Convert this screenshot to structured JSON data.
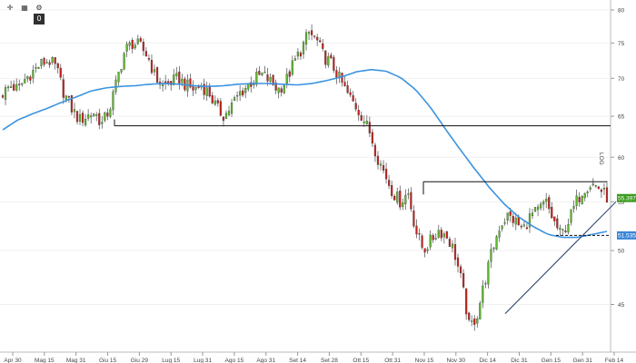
{
  "toolbar": {
    "buttons": [
      {
        "name": "crosshair-icon",
        "glyph": "✛"
      },
      {
        "name": "grid-icon",
        "glyph": "▦"
      },
      {
        "name": "settings-icon",
        "glyph": "⚙"
      },
      {
        "name": "zero-button",
        "glyph": "0"
      }
    ]
  },
  "side_label": "LOG",
  "chart_data": {
    "type": "candlestick",
    "scale": "log",
    "ylim": [
      41,
      81
    ],
    "y_ticks": [
      45,
      50,
      55,
      60,
      65,
      70,
      75,
      80
    ],
    "x_ticks": [
      "Apr 30",
      "Mag 15",
      "Mag 31",
      "Giu 15",
      "Giu 29",
      "Lug 15",
      "Lug 31",
      "Ago 15",
      "Ago 31",
      "Set 14",
      "Set 28",
      "Ott 15",
      "Ott 31",
      "Nov 15",
      "Nov 30",
      "Dic 14",
      "Dic 31",
      "Gen 15",
      "Gen 31",
      "Feb 14"
    ],
    "close_path": [
      68,
      69,
      68.5,
      70,
      71,
      72,
      72.5,
      71.5,
      68,
      66,
      64.5,
      65,
      65.5,
      64,
      66,
      70,
      74,
      75,
      74.5,
      73,
      70,
      69,
      69.5,
      70,
      69,
      68.5,
      69,
      68,
      66,
      65,
      66.5,
      68,
      69,
      70,
      70.5,
      69.5,
      68.5,
      69.5,
      72,
      74,
      76.5,
      75.5,
      73,
      72,
      70,
      68,
      66.5,
      65,
      63,
      60,
      58,
      56,
      55,
      56,
      52,
      50,
      51,
      52,
      51.5,
      50,
      47,
      43,
      44,
      47,
      50,
      52.5,
      53.5,
      53,
      52,
      53.5,
      54,
      55,
      53,
      51.5,
      53,
      55,
      56.5,
      57,
      56.5,
      55.5
    ],
    "moving_average": [
      63.3,
      64.5,
      65.3,
      66.0,
      66.8,
      67.5,
      68.3,
      68.7,
      68.9,
      69.0,
      69.2,
      69.3,
      69.2,
      69.0,
      68.9,
      69.0,
      69.2,
      69.3,
      69.3,
      69.2,
      69.1,
      69.3,
      69.7,
      70.2,
      70.9,
      71.2,
      71.0,
      70.1,
      68.5,
      66.2,
      63.5,
      61.0,
      58.7,
      56.6,
      54.8,
      53.4,
      52.4,
      51.6,
      51.3,
      51.3,
      51.6,
      51.9
    ],
    "resistance_lines": [
      {
        "from": "Giu 15",
        "to": "right-edge",
        "y": 63.8
      },
      {
        "from": "Nov 15",
        "to": "Feb 14",
        "y": 57.2
      }
    ],
    "dashed_line": {
      "y": 51.5
    },
    "trendline": {
      "from": [
        44.2
      ],
      "to": [
        55.0
      ]
    },
    "price_badges": [
      {
        "label": "55.3970",
        "value": 55.4,
        "color": "#3a9c1e"
      },
      {
        "label": "51.5358",
        "value": 51.5,
        "color": "#3a86d8"
      }
    ],
    "up_color": "#5cb82b",
    "down_color": "#c8201c",
    "ma_color": "#3b93e0"
  }
}
